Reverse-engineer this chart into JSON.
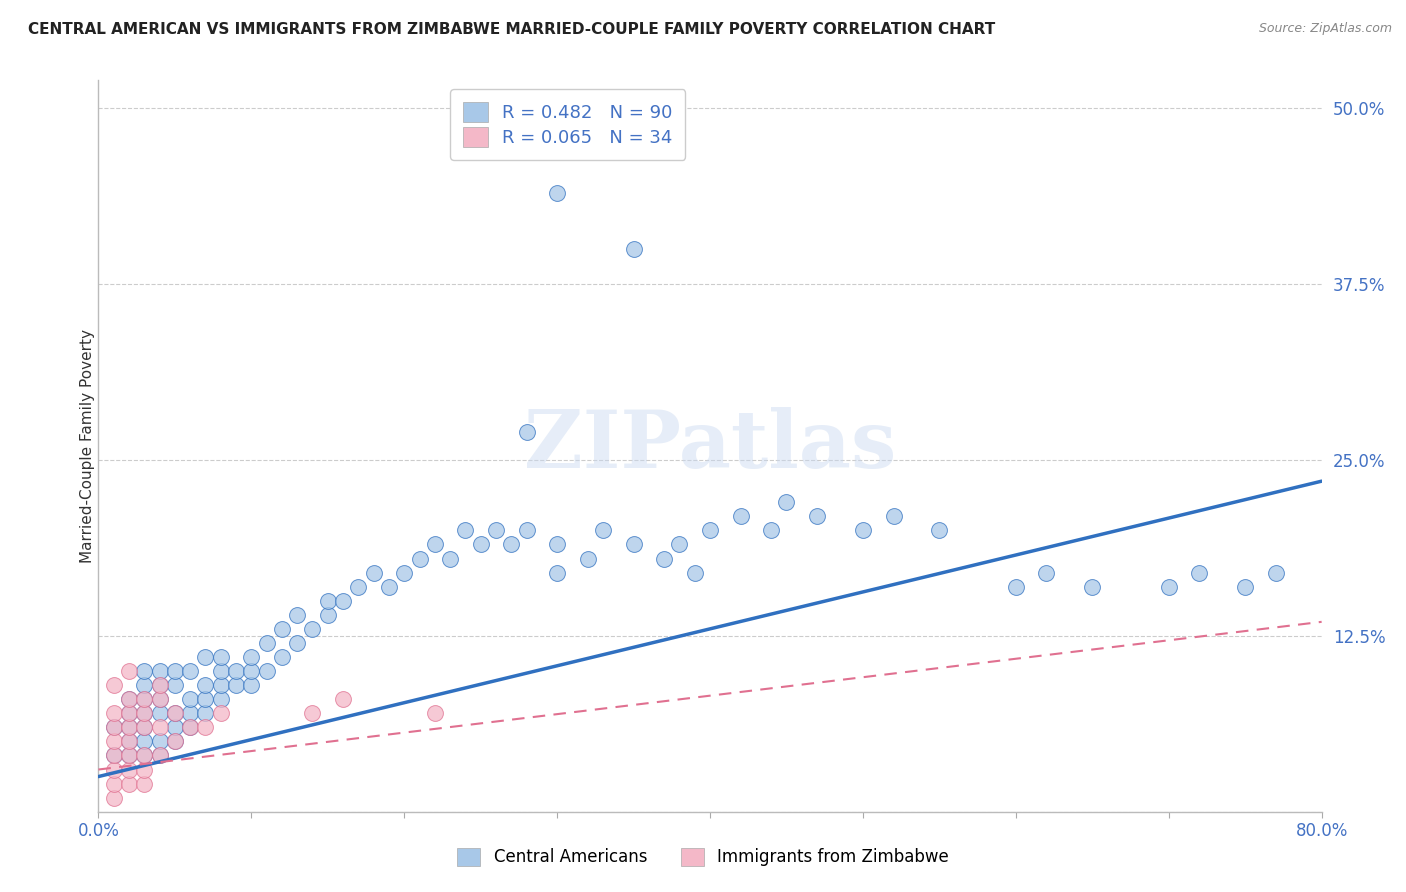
{
  "title": "CENTRAL AMERICAN VS IMMIGRANTS FROM ZIMBABWE MARRIED-COUPLE FAMILY POVERTY CORRELATION CHART",
  "source": "Source: ZipAtlas.com",
  "ylabel": "Married-Couple Family Poverty",
  "xlim": [
    0.0,
    0.8
  ],
  "ylim": [
    0.0,
    0.52
  ],
  "yticks": [
    0.0,
    0.125,
    0.25,
    0.375,
    0.5
  ],
  "ytick_labels": [
    "",
    "12.5%",
    "25.0%",
    "37.5%",
    "50.0%"
  ],
  "xticks": [
    0.0,
    0.1,
    0.2,
    0.3,
    0.4,
    0.5,
    0.6,
    0.7,
    0.8
  ],
  "xtick_labels": [
    "0.0%",
    "",
    "",
    "",
    "",
    "",
    "",
    "",
    "80.0%"
  ],
  "blue_R": 0.482,
  "blue_N": 90,
  "pink_R": 0.065,
  "pink_N": 34,
  "blue_color": "#a8c8e8",
  "pink_color": "#f4b8c8",
  "blue_line_color": "#3070c0",
  "pink_line_color": "#e07090",
  "watermark": "ZIPatlas",
  "legend_label_blue": "Central Americans",
  "legend_label_pink": "Immigrants from Zimbabwe",
  "blue_line_x0": 0.0,
  "blue_line_y0": 0.025,
  "blue_line_x1": 0.8,
  "blue_line_y1": 0.235,
  "pink_line_x0": 0.0,
  "pink_line_y0": 0.03,
  "pink_line_x1": 0.8,
  "pink_line_y1": 0.135,
  "blue_x": [
    0.01,
    0.01,
    0.02,
    0.02,
    0.02,
    0.02,
    0.02,
    0.03,
    0.03,
    0.03,
    0.03,
    0.03,
    0.03,
    0.03,
    0.04,
    0.04,
    0.04,
    0.04,
    0.04,
    0.04,
    0.05,
    0.05,
    0.05,
    0.05,
    0.05,
    0.06,
    0.06,
    0.06,
    0.06,
    0.07,
    0.07,
    0.07,
    0.07,
    0.08,
    0.08,
    0.08,
    0.08,
    0.09,
    0.09,
    0.1,
    0.1,
    0.1,
    0.11,
    0.11,
    0.12,
    0.12,
    0.13,
    0.13,
    0.14,
    0.15,
    0.15,
    0.16,
    0.17,
    0.18,
    0.19,
    0.2,
    0.21,
    0.22,
    0.23,
    0.24,
    0.25,
    0.26,
    0.27,
    0.28,
    0.3,
    0.3,
    0.32,
    0.33,
    0.35,
    0.37,
    0.38,
    0.39,
    0.4,
    0.42,
    0.44,
    0.45,
    0.47,
    0.5,
    0.52,
    0.55,
    0.6,
    0.62,
    0.65,
    0.7,
    0.72,
    0.75,
    0.77,
    0.3,
    0.28,
    0.35
  ],
  "blue_y": [
    0.04,
    0.06,
    0.04,
    0.05,
    0.06,
    0.07,
    0.08,
    0.04,
    0.05,
    0.06,
    0.07,
    0.08,
    0.09,
    0.1,
    0.04,
    0.05,
    0.07,
    0.08,
    0.09,
    0.1,
    0.05,
    0.06,
    0.07,
    0.09,
    0.1,
    0.06,
    0.07,
    0.08,
    0.1,
    0.07,
    0.08,
    0.09,
    0.11,
    0.08,
    0.09,
    0.1,
    0.11,
    0.09,
    0.1,
    0.09,
    0.1,
    0.11,
    0.1,
    0.12,
    0.11,
    0.13,
    0.12,
    0.14,
    0.13,
    0.14,
    0.15,
    0.15,
    0.16,
    0.17,
    0.16,
    0.17,
    0.18,
    0.19,
    0.18,
    0.2,
    0.19,
    0.2,
    0.19,
    0.2,
    0.17,
    0.19,
    0.18,
    0.2,
    0.19,
    0.18,
    0.19,
    0.17,
    0.2,
    0.21,
    0.2,
    0.22,
    0.21,
    0.2,
    0.21,
    0.2,
    0.16,
    0.17,
    0.16,
    0.16,
    0.17,
    0.16,
    0.17,
    0.44,
    0.27,
    0.4
  ],
  "pink_x": [
    0.01,
    0.01,
    0.01,
    0.01,
    0.01,
    0.01,
    0.01,
    0.01,
    0.02,
    0.02,
    0.02,
    0.02,
    0.02,
    0.02,
    0.02,
    0.02,
    0.03,
    0.03,
    0.03,
    0.03,
    0.03,
    0.03,
    0.04,
    0.04,
    0.04,
    0.04,
    0.05,
    0.05,
    0.06,
    0.07,
    0.08,
    0.14,
    0.16,
    0.22
  ],
  "pink_y": [
    0.01,
    0.02,
    0.03,
    0.04,
    0.05,
    0.06,
    0.07,
    0.09,
    0.02,
    0.03,
    0.04,
    0.05,
    0.06,
    0.07,
    0.08,
    0.1,
    0.02,
    0.03,
    0.04,
    0.06,
    0.07,
    0.08,
    0.04,
    0.06,
    0.08,
    0.09,
    0.05,
    0.07,
    0.06,
    0.06,
    0.07,
    0.07,
    0.08,
    0.07
  ]
}
